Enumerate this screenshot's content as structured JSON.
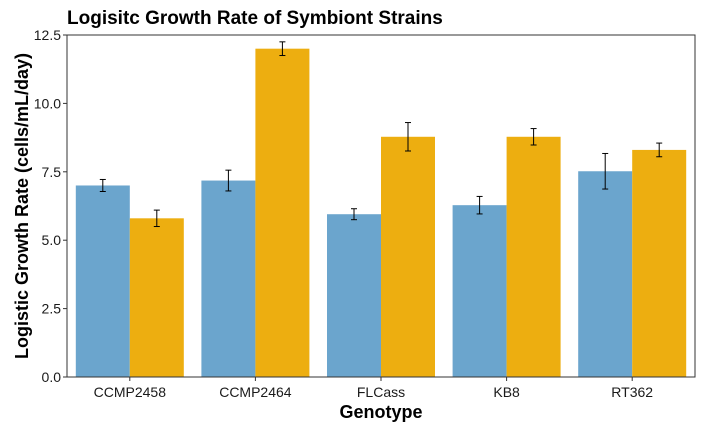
{
  "chart_data": {
    "type": "bar",
    "title": "Logisitc Growth Rate of Symbiont Strains",
    "xlabel": "Genotype",
    "ylabel": "Logistic Growth Rate (cells/mL/day)",
    "categories": [
      "CCMP2458",
      "CCMP2464",
      "FLCass",
      "KB8",
      "RT362"
    ],
    "ylim": [
      0,
      12.5
    ],
    "yticks": [
      "0.0",
      "2.5",
      "5.0",
      "7.5",
      "10.0",
      "12.5"
    ],
    "grid": false,
    "legend": "none",
    "series": [
      {
        "color": "#6BA5CD",
        "values": [
          7.0,
          7.18,
          5.95,
          6.28,
          7.52
        ],
        "errors": [
          0.22,
          0.38,
          0.2,
          0.32,
          0.65
        ]
      },
      {
        "color": "#EDAE10",
        "values": [
          5.8,
          12.0,
          8.78,
          8.78,
          8.3
        ],
        "errors": [
          0.3,
          0.25,
          0.52,
          0.3,
          0.25
        ]
      }
    ]
  }
}
